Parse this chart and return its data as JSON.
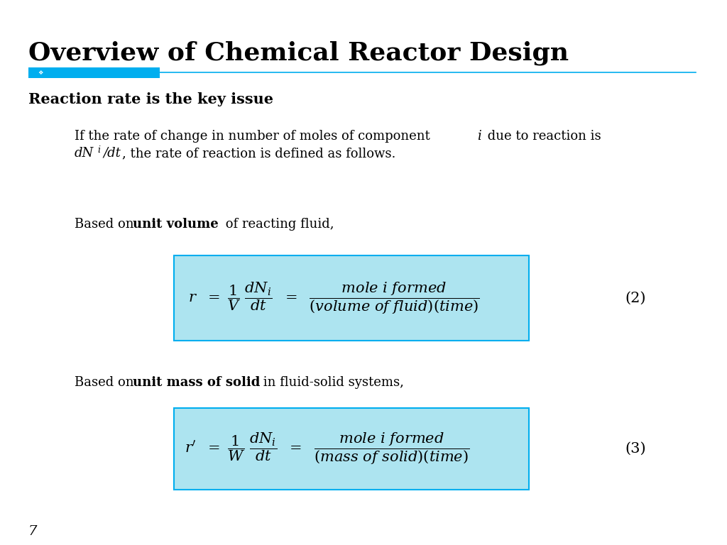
{
  "title": "Overview of Chemical Reactor Design",
  "title_fontsize": 26,
  "title_color": "#000000",
  "subtitle": "Reaction rate is the key issue",
  "subtitle_fontsize": 15,
  "bar_color_thick": "#00AEEF",
  "bar_color_line": "#00AEEF",
  "body_fontsize": 13,
  "box_bg_color": "#ADE4F0",
  "box_edge_color": "#00AEEF",
  "page_number": "7",
  "bg_color": "#FFFFFF",
  "eq1_label": "(2)",
  "eq2_label": "(3)"
}
